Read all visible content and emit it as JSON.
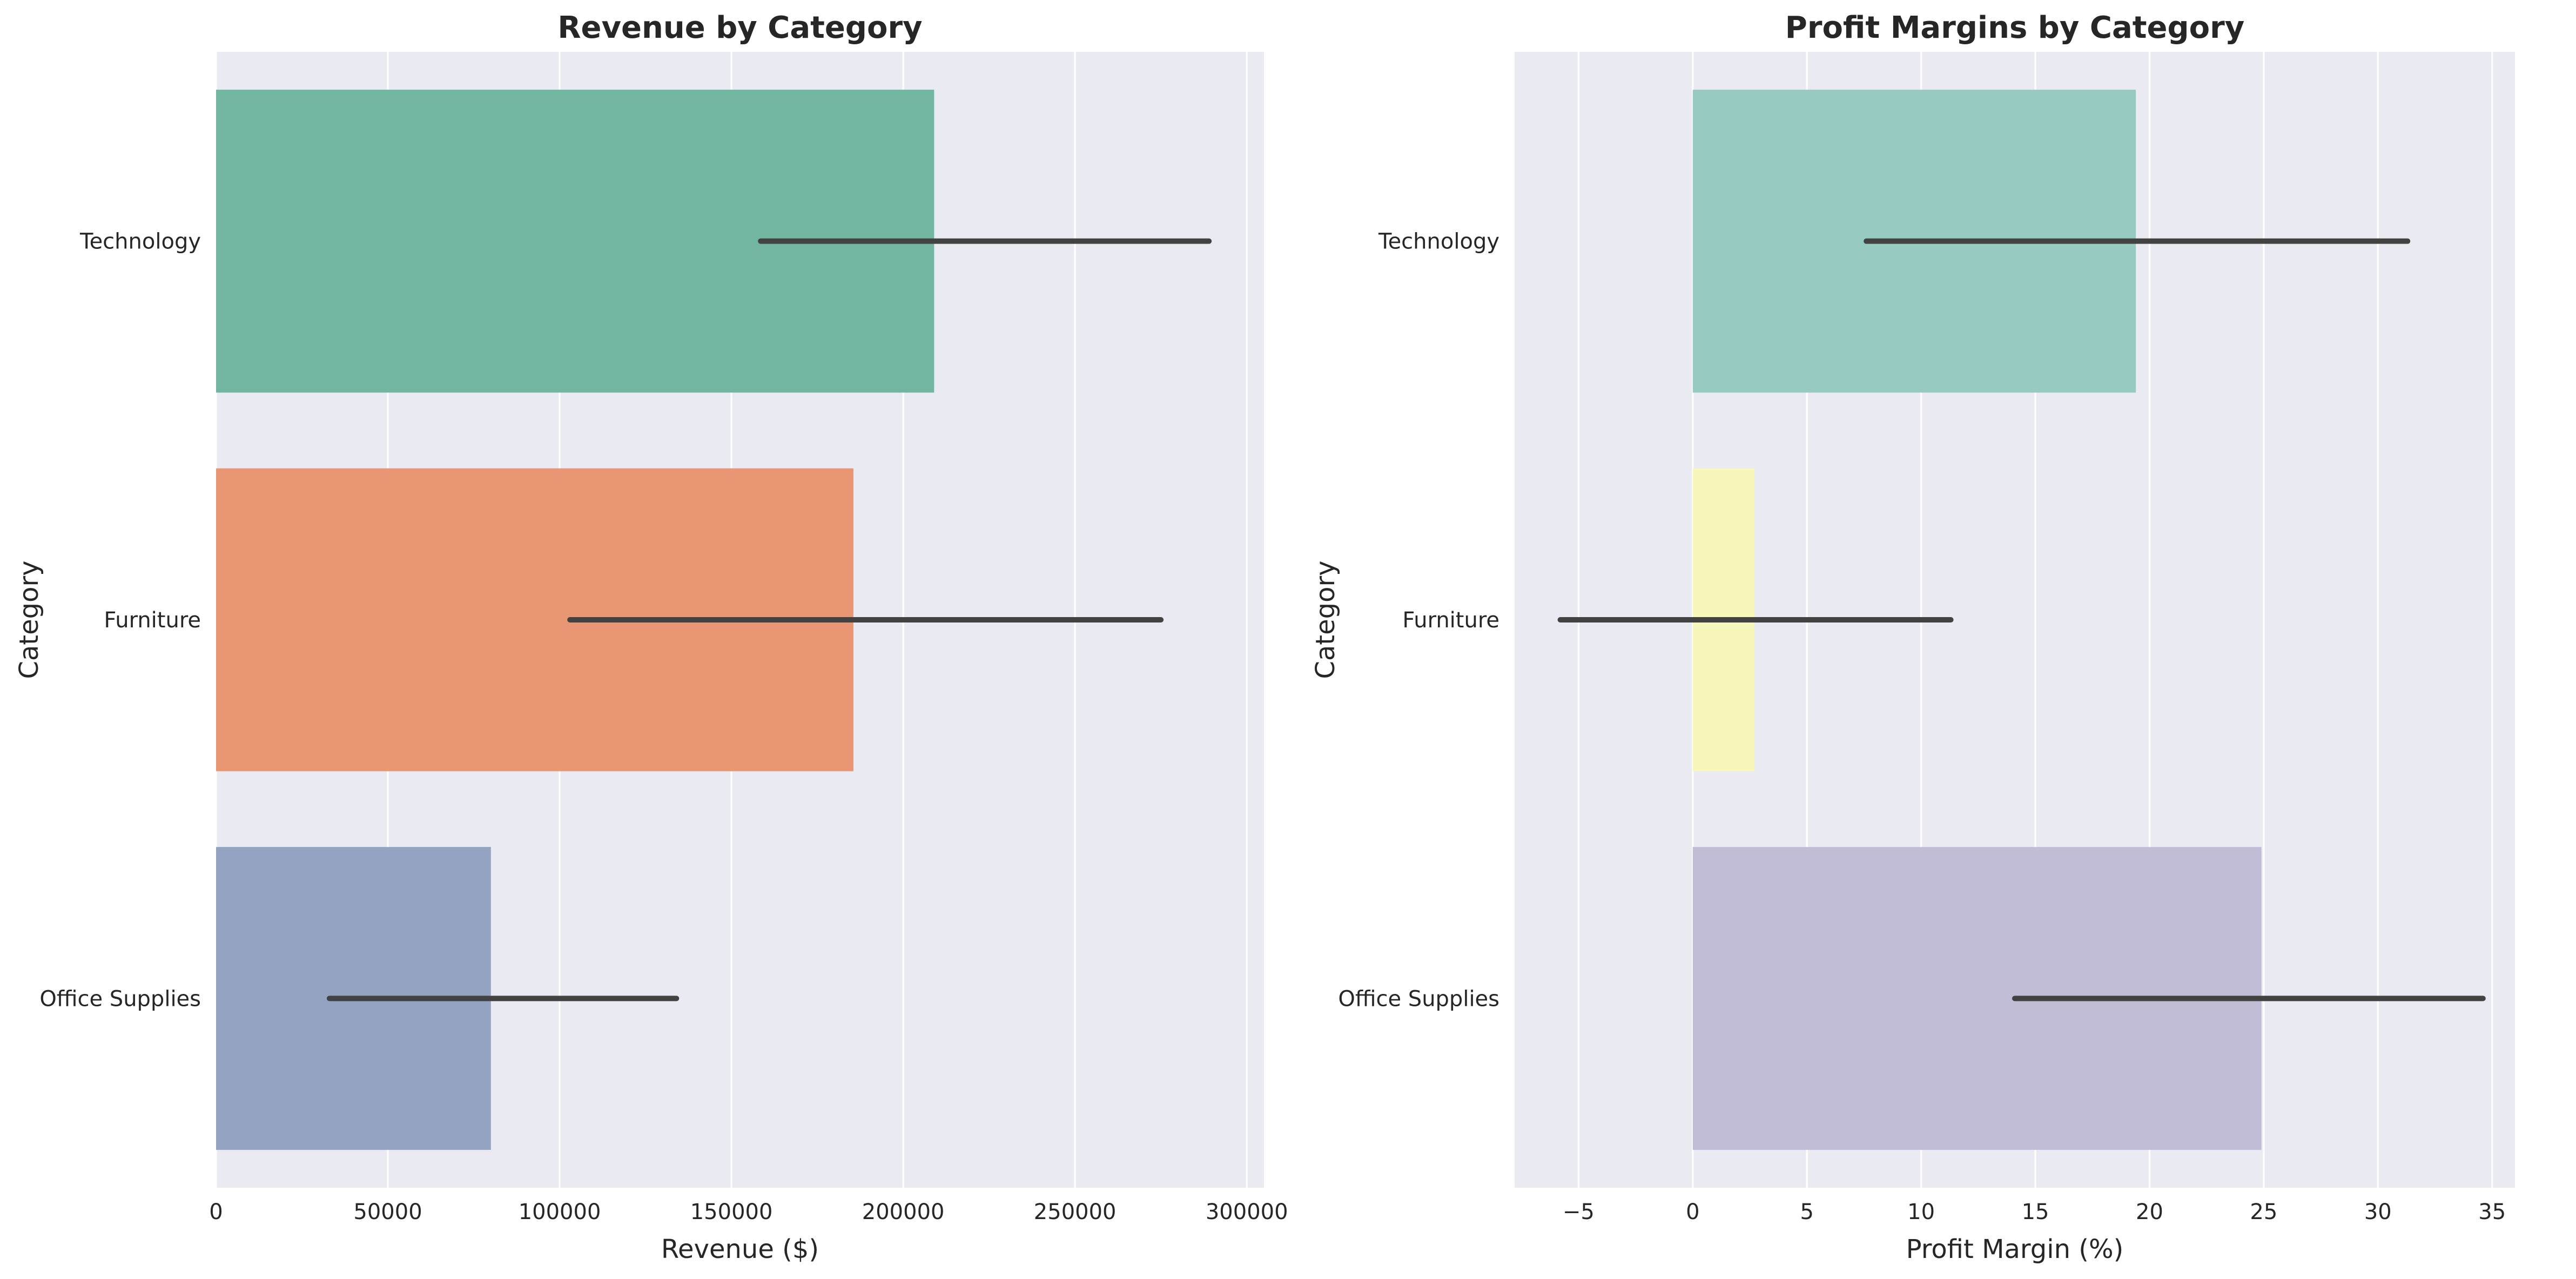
{
  "chart_data": [
    {
      "type": "bar",
      "orientation": "horizontal",
      "title": "Revenue by Category",
      "xlabel": "Revenue ($)",
      "ylabel": "Category",
      "categories": [
        "Technology",
        "Furniture",
        "Office Supplies"
      ],
      "values": [
        209000,
        185500,
        80000
      ],
      "error_bars": [
        {
          "low": 158500,
          "high": 289000
        },
        {
          "low": 103000,
          "high": 275000
        },
        {
          "low": 33000,
          "high": 134000
        }
      ],
      "xlim": [
        0,
        305000
      ],
      "xticks": [
        0,
        50000,
        100000,
        150000,
        200000,
        250000,
        300000
      ],
      "xtick_labels": [
        "0",
        "50000",
        "100000",
        "150000",
        "200000",
        "250000",
        "300000"
      ],
      "colors": [
        "#72b6a1",
        "#e99675",
        "#95a3c3"
      ],
      "background": "#eaeaf2",
      "grid": true,
      "grid_axis": "x"
    },
    {
      "type": "bar",
      "orientation": "horizontal",
      "title": "Profit Margins by Category",
      "xlabel": "Profit Margin (%)",
      "ylabel": "Category",
      "categories": [
        "Technology",
        "Furniture",
        "Office Supplies"
      ],
      "values": [
        19.4,
        2.7,
        24.9
      ],
      "error_bars": [
        {
          "low": 7.6,
          "high": 31.3
        },
        {
          "low": -5.8,
          "high": 11.3
        },
        {
          "low": 14.1,
          "high": 34.6
        }
      ],
      "xlim": [
        -7.8,
        36
      ],
      "xticks": [
        -5,
        0,
        5,
        10,
        15,
        20,
        25,
        30,
        35
      ],
      "xtick_labels": [
        "−5",
        "0",
        "5",
        "10",
        "15",
        "20",
        "25",
        "30",
        "35"
      ],
      "colors": [
        "#97cac0",
        "#f7f6bb",
        "#c1bdd6"
      ],
      "background": "#eaeaf2",
      "grid": true,
      "grid_axis": "x"
    }
  ]
}
